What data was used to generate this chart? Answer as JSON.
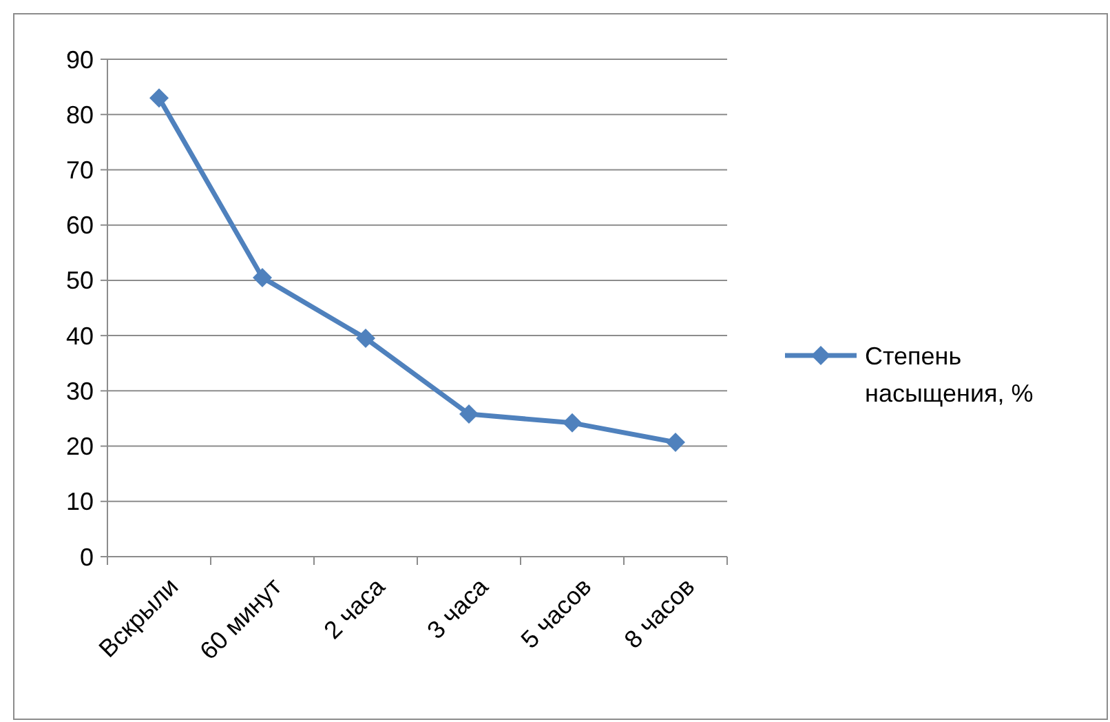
{
  "chart_data": {
    "type": "line",
    "categories": [
      "Вскрыли",
      "60 минут",
      "2 часа",
      "3 часа",
      "5 часов",
      "8 часов"
    ],
    "series": [
      {
        "name": "Степень насыщения, %",
        "color": "#4f81bd",
        "values": [
          83,
          50.5,
          39.5,
          25.8,
          24.2,
          20.7
        ]
      }
    ],
    "ylim": [
      0,
      90
    ],
    "yticks": [
      0,
      10,
      20,
      30,
      40,
      50,
      60,
      70,
      80,
      90
    ],
    "grid": "y",
    "legend": "right",
    "marker": "diamond",
    "line_style": "solid"
  }
}
